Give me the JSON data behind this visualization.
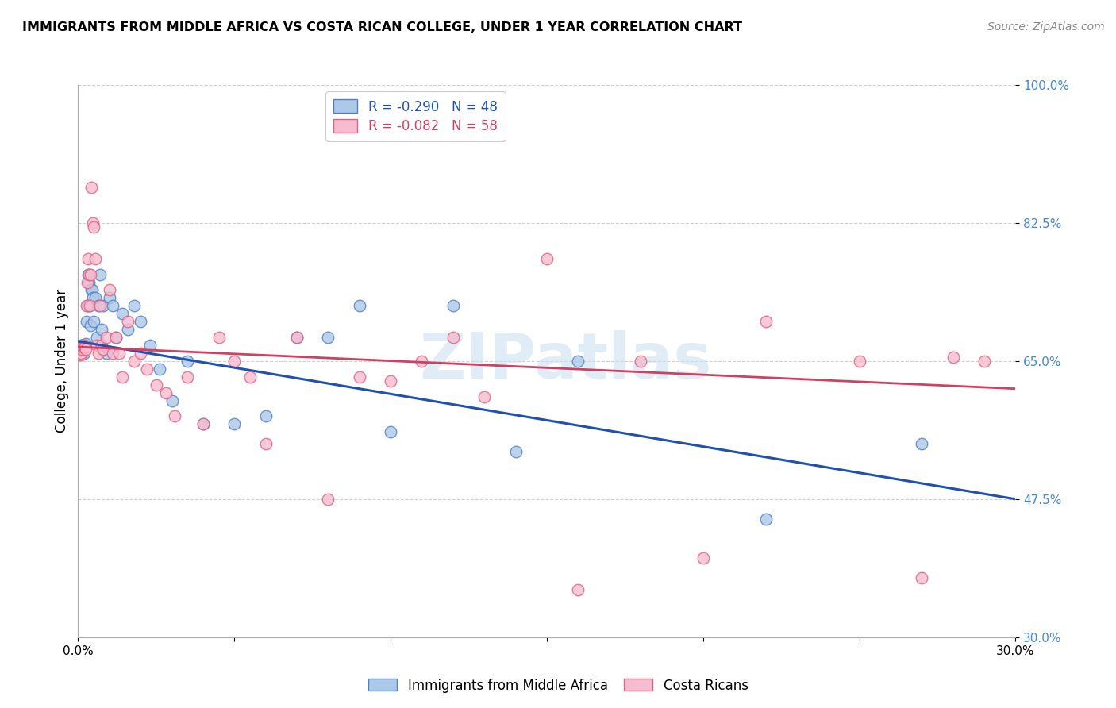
{
  "title": "IMMIGRANTS FROM MIDDLE AFRICA VS COSTA RICAN COLLEGE, UNDER 1 YEAR CORRELATION CHART",
  "source": "Source: ZipAtlas.com",
  "ylabel": "College, Under 1 year",
  "xmin": 0.0,
  "xmax": 0.3,
  "ymin": 0.3,
  "ymax": 1.0,
  "yticks": [
    0.3,
    0.475,
    0.65,
    0.825,
    1.0
  ],
  "ytick_labels": [
    "30.0%",
    "47.5%",
    "65.0%",
    "82.5%",
    "100.0%"
  ],
  "xtick_positions": [
    0.0,
    0.05,
    0.1,
    0.15,
    0.2,
    0.25,
    0.3
  ],
  "xtick_labels": [
    "0.0%",
    "",
    "",
    "",
    "",
    "",
    "30.0%"
  ],
  "blue_color": "#adc8e8",
  "pink_color": "#f5bcd0",
  "blue_edge": "#5080c8",
  "pink_edge": "#e06080",
  "blue_line_color": "#2050b0",
  "pink_line_color": "#d04060",
  "legend_label1": "Immigrants from Middle Africa",
  "legend_label2": "Costa Ricans",
  "blue_scatter_x": [
    0.0008,
    0.001,
    0.0012,
    0.0015,
    0.0018,
    0.002,
    0.0022,
    0.0025,
    0.0028,
    0.003,
    0.0032,
    0.0035,
    0.0038,
    0.004,
    0.0042,
    0.0045,
    0.0048,
    0.005,
    0.0055,
    0.006,
    0.0065,
    0.007,
    0.0075,
    0.008,
    0.009,
    0.01,
    0.011,
    0.012,
    0.014,
    0.016,
    0.018,
    0.02,
    0.023,
    0.026,
    0.03,
    0.035,
    0.04,
    0.05,
    0.06,
    0.07,
    0.08,
    0.09,
    0.1,
    0.12,
    0.14,
    0.16,
    0.22,
    0.27
  ],
  "blue_scatter_y": [
    0.67,
    0.665,
    0.67,
    0.668,
    0.66,
    0.668,
    0.67,
    0.672,
    0.7,
    0.72,
    0.76,
    0.75,
    0.72,
    0.695,
    0.74,
    0.74,
    0.73,
    0.7,
    0.73,
    0.68,
    0.72,
    0.76,
    0.69,
    0.72,
    0.66,
    0.73,
    0.72,
    0.68,
    0.71,
    0.69,
    0.72,
    0.7,
    0.67,
    0.64,
    0.6,
    0.65,
    0.57,
    0.57,
    0.58,
    0.68,
    0.68,
    0.72,
    0.56,
    0.72,
    0.535,
    0.65,
    0.45,
    0.545
  ],
  "pink_scatter_x": [
    0.0008,
    0.001,
    0.0012,
    0.0015,
    0.0018,
    0.002,
    0.0022,
    0.0025,
    0.0028,
    0.003,
    0.0032,
    0.0035,
    0.0038,
    0.004,
    0.0043,
    0.0046,
    0.005,
    0.0055,
    0.006,
    0.0065,
    0.007,
    0.0075,
    0.008,
    0.009,
    0.01,
    0.011,
    0.012,
    0.013,
    0.014,
    0.016,
    0.018,
    0.02,
    0.022,
    0.025,
    0.028,
    0.031,
    0.035,
    0.04,
    0.045,
    0.05,
    0.055,
    0.06,
    0.07,
    0.08,
    0.09,
    0.1,
    0.11,
    0.12,
    0.13,
    0.15,
    0.16,
    0.18,
    0.2,
    0.22,
    0.25,
    0.27,
    0.28,
    0.29
  ],
  "pink_scatter_y": [
    0.658,
    0.66,
    0.665,
    0.668,
    0.67,
    0.668,
    0.668,
    0.665,
    0.72,
    0.75,
    0.78,
    0.76,
    0.72,
    0.76,
    0.87,
    0.825,
    0.82,
    0.78,
    0.67,
    0.66,
    0.72,
    0.67,
    0.665,
    0.68,
    0.74,
    0.66,
    0.68,
    0.66,
    0.63,
    0.7,
    0.65,
    0.66,
    0.64,
    0.62,
    0.61,
    0.58,
    0.63,
    0.57,
    0.68,
    0.65,
    0.63,
    0.545,
    0.68,
    0.475,
    0.63,
    0.625,
    0.65,
    0.68,
    0.605,
    0.78,
    0.36,
    0.65,
    0.4,
    0.7,
    0.65,
    0.375,
    0.655,
    0.65
  ],
  "blue_trend_x": [
    0.0,
    0.3
  ],
  "blue_trend_y": [
    0.675,
    0.475
  ],
  "pink_trend_x": [
    0.0,
    0.3
  ],
  "pink_trend_y": [
    0.668,
    0.615
  ],
  "watermark": "ZIPatlas",
  "bg_color": "#ffffff",
  "grid_color": "#d0d0d0"
}
